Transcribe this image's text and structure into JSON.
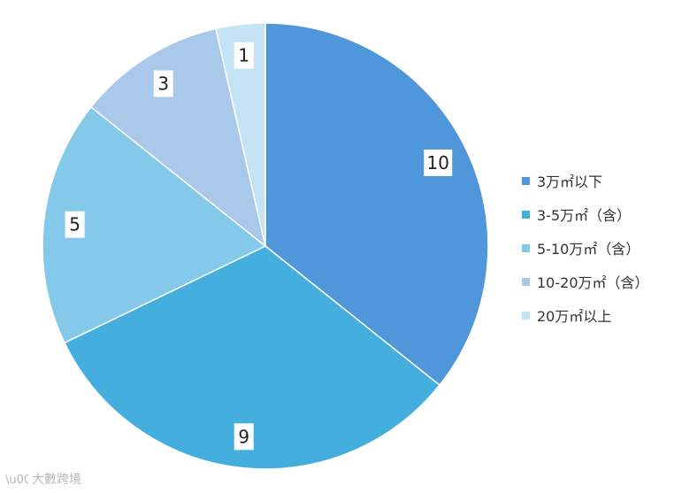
{
  "chart_data": {
    "type": "pie",
    "categories": [
      "3万㎡以下",
      "3-5万㎡（含）",
      "5-10万㎡（含）",
      "10-20万㎡（含）",
      "20万㎡以上"
    ],
    "values": [
      10,
      9,
      5,
      3,
      1
    ],
    "colors": [
      "#5096db",
      "#44afdf",
      "#84c9ea",
      "#a9c8ea",
      "#c4e3f4"
    ],
    "start": "top, clockwise",
    "legend_position": "right",
    "data_labels": [
      "10",
      "9",
      "5",
      "3",
      "1"
    ]
  },
  "watermark": {
    "text": "大數跨境"
  }
}
